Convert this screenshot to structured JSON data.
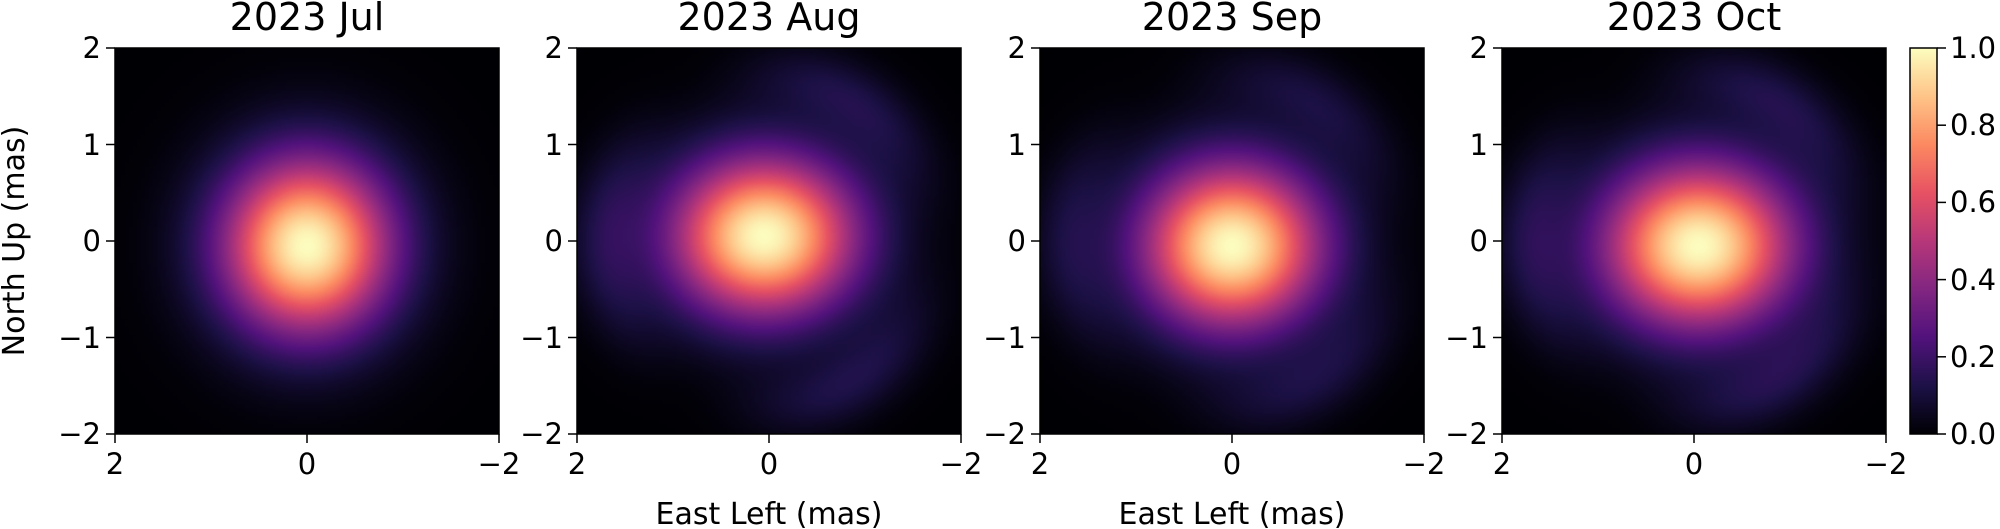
{
  "chart_data": {
    "type": "heatmap",
    "colormap": "magma",
    "interpolation": "smooth",
    "panels": [
      {
        "title": "2023 Jul",
        "xlabel": "",
        "center": [
          0.0,
          -0.05
        ],
        "sigma": [
          0.62,
          0.64
        ],
        "ring_amplitude": 0.0,
        "xlim": [
          2,
          -2
        ],
        "ylim": [
          -2,
          2
        ],
        "xticks": [
          "2",
          "0",
          "−2"
        ],
        "yticks": [
          "2",
          "1",
          "0",
          "−1",
          "−2"
        ]
      },
      {
        "title": "2023 Aug",
        "xlabel": "East Left (mas)",
        "center": [
          0.05,
          0.05
        ],
        "sigma": [
          0.68,
          0.58
        ],
        "ring_amplitude": 0.12,
        "xlim": [
          2,
          -2
        ],
        "ylim": [
          -2,
          2
        ],
        "xticks": [
          "2",
          "0",
          "−2"
        ],
        "yticks": [
          "2",
          "1",
          "0",
          "−1",
          "−2"
        ]
      },
      {
        "title": "2023 Sep",
        "xlabel": "East Left (mas)",
        "center": [
          0.0,
          -0.05
        ],
        "sigma": [
          0.66,
          0.6
        ],
        "ring_amplitude": 0.1,
        "xlim": [
          2,
          -2
        ],
        "ylim": [
          -2,
          2
        ],
        "xticks": [
          "2",
          "0",
          "−2"
        ],
        "yticks": [
          "2",
          "1",
          "0",
          "−1",
          "−2"
        ]
      },
      {
        "title": "2023 Oct",
        "xlabel": "",
        "center": [
          -0.05,
          -0.05
        ],
        "sigma": [
          0.7,
          0.6
        ],
        "ring_amplitude": 0.12,
        "xlim": [
          2,
          -2
        ],
        "ylim": [
          -2,
          2
        ],
        "xticks": [
          "2",
          "0",
          "−2"
        ],
        "yticks": [
          "2",
          "1",
          "0",
          "−1",
          "−2"
        ]
      }
    ],
    "ylabel": "North Up (mas)",
    "colorbar": {
      "range": [
        0.0,
        1.0
      ],
      "ticks": [
        "0.0",
        "0.2",
        "0.4",
        "0.6",
        "0.8",
        "1.0"
      ]
    }
  }
}
